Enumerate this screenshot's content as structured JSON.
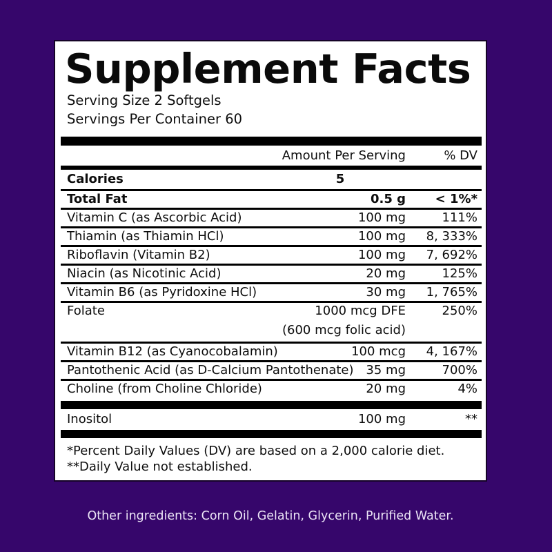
{
  "colors": {
    "background": "#36066b",
    "panel_bg": "#ffffff",
    "panel_text": "#0d0d0d",
    "other_ingredients_text": "#ece5f6"
  },
  "panel": {
    "title": "Supplement Facts",
    "serving_size": "Serving Size 2 Softgels",
    "servings_per_container": "Servings Per Container 60",
    "header": {
      "amount_label": "Amount Per Serving",
      "dv_label": "% DV"
    },
    "rows": [
      {
        "name": "Calories",
        "amount": "5",
        "dv": ""
      },
      {
        "name": "Total Fat",
        "amount": "0.5 g",
        "dv": "< 1%*"
      },
      {
        "name": "Vitamin C (as Ascorbic Acid)",
        "amount": "100 mg",
        "dv": "111%"
      },
      {
        "name": "Thiamin (as Thiamin HCl)",
        "amount": "100 mg",
        "dv": "8, 333%"
      },
      {
        "name": "Riboflavin (Vitamin B2)",
        "amount": "100 mg",
        "dv": "7, 692%"
      },
      {
        "name": "Niacin (as Nicotinic Acid)",
        "amount": "20 mg",
        "dv": "125%"
      },
      {
        "name": "Vitamin B6 (as Pyridoxine HCl)",
        "amount": "30 mg",
        "dv": "1, 765%"
      },
      {
        "name": "Folate",
        "amount": "1000 mcg DFE",
        "dv": "250%"
      },
      {
        "name": "",
        "amount": "(600 mcg folic acid)",
        "dv": ""
      },
      {
        "name": "Vitamin B12 (as Cyanocobalamin)",
        "amount": "100 mcg",
        "dv": "4, 167%"
      },
      {
        "name": "Pantothenic Acid (as D-Calcium Pantothenate)",
        "amount": "35 mg",
        "dv": "700%"
      },
      {
        "name": "Choline (from Choline Chloride)",
        "amount": "20 mg",
        "dv": "4%"
      }
    ],
    "inositol_row": {
      "name": "Inositol",
      "amount": "100 mg",
      "dv": "**"
    },
    "footnotes": [
      "*Percent Daily Values (DV) are based on a 2,000 calorie diet.",
      "**Daily Value not established."
    ]
  },
  "other_ingredients": "Other ingredients: Corn Oil, Gelatin, Glycerin, Purified Water."
}
